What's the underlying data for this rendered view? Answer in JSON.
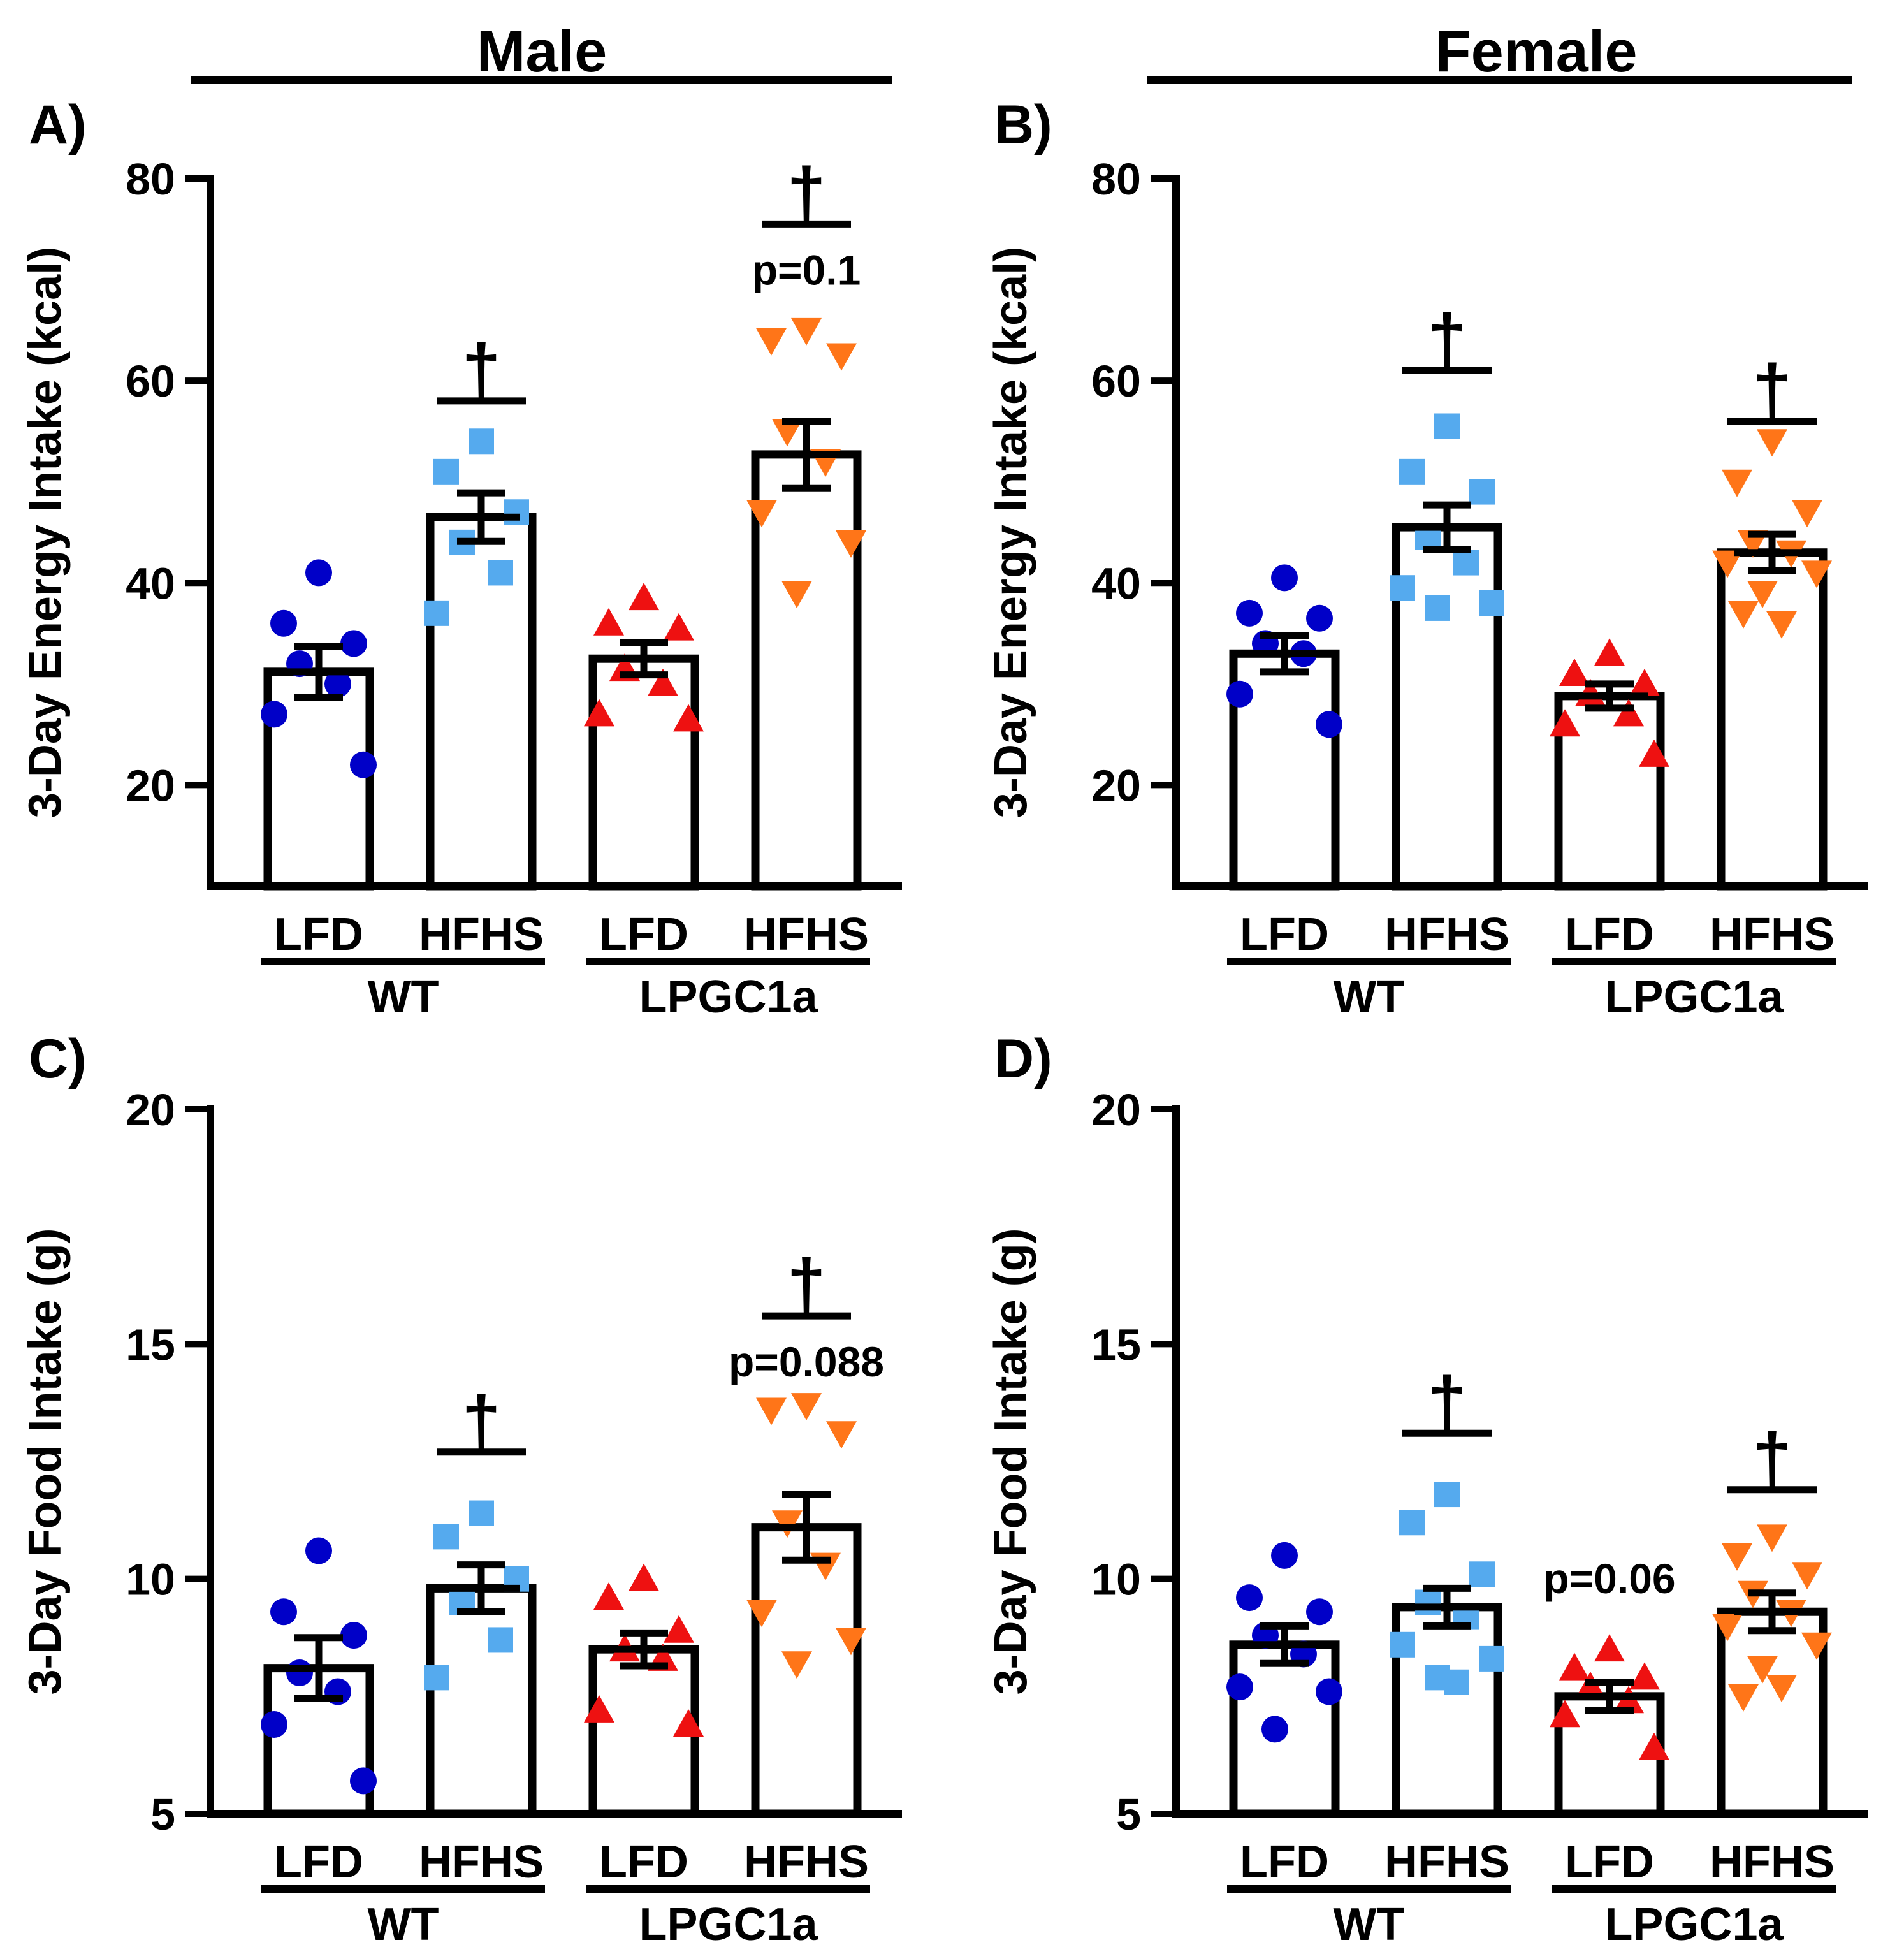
{
  "figure": {
    "header_left": "Male",
    "header_right": "Female"
  },
  "colors": {
    "wt_lfd": "#0000c8",
    "wt_hfhs": "#55aaee",
    "lpgc_lfd": "#ee1111",
    "lpgc_hfhs": "#ff7518",
    "axis": "#000000"
  },
  "chart_data": [
    {
      "type": "bar",
      "panel_label": "A)",
      "ylabel": "3-Day Energy Intake (kcal)",
      "ylim": [
        10,
        80
      ],
      "yticks": [
        20,
        40,
        60,
        80
      ],
      "categories": [
        "LFD",
        "HFHS",
        "LFD",
        "HFHS"
      ],
      "groups": [
        "WT",
        "LPGC1a"
      ],
      "markers": [
        "circle",
        "square",
        "triangle-up",
        "triangle-down"
      ],
      "means": [
        31.2,
        46.5,
        32.5,
        52.7
      ],
      "sem": [
        2.5,
        2.4,
        1.6,
        3.3
      ],
      "points": [
        [
          41,
          36,
          34,
          32,
          30,
          27,
          22
        ],
        [
          54,
          51,
          47,
          44,
          41,
          37
        ],
        [
          38.5,
          36,
          35.5,
          31.5,
          30,
          27,
          26.5
        ],
        [
          65,
          64,
          62.5,
          55,
          52,
          47,
          44,
          39
        ]
      ],
      "annotations": [
        {
          "bar_index": 1,
          "text": "†",
          "level": 58
        },
        {
          "bar_index": 3,
          "text": "†",
          "level": 75.5,
          "note": "p=0.1"
        }
      ]
    },
    {
      "type": "bar",
      "panel_label": "B)",
      "ylabel": "3-Day Energy Intake (kcal)",
      "ylim": [
        10,
        80
      ],
      "yticks": [
        20,
        40,
        60,
        80
      ],
      "categories": [
        "LFD",
        "HFHS",
        "LFD",
        "HFHS"
      ],
      "groups": [
        "WT",
        "LPGC1a"
      ],
      "markers": [
        "circle",
        "square",
        "triangle-up",
        "triangle-down"
      ],
      "means": [
        33.0,
        45.5,
        28.8,
        43.0
      ],
      "sem": [
        1.8,
        2.2,
        1.2,
        1.8
      ],
      "points": [
        [
          40.5,
          37,
          36.5,
          34,
          33,
          29,
          26
        ],
        [
          55.5,
          51,
          49,
          44.5,
          42,
          39.5,
          38,
          37.5
        ],
        [
          33,
          31,
          30,
          29,
          27,
          26,
          23
        ],
        [
          54,
          50,
          47,
          44,
          43,
          42,
          41,
          39,
          36,
          37
        ]
      ],
      "annotations": [
        {
          "bar_index": 1,
          "text": "†",
          "level": 61
        },
        {
          "bar_index": 3,
          "text": "†",
          "level": 56
        }
      ]
    },
    {
      "type": "bar",
      "panel_label": "C)",
      "ylabel": "3-Day Food Intake (g)",
      "ylim": [
        5,
        20
      ],
      "yticks": [
        5,
        10,
        15,
        20
      ],
      "categories": [
        "LFD",
        "HFHS",
        "LFD",
        "HFHS"
      ],
      "groups": [
        "WT",
        "LPGC1a"
      ],
      "markers": [
        "circle",
        "square",
        "triangle-up",
        "triangle-down"
      ],
      "means": [
        8.1,
        9.8,
        8.5,
        11.1
      ],
      "sem": [
        0.65,
        0.5,
        0.35,
        0.7
      ],
      "points": [
        [
          10.6,
          9.3,
          8.8,
          8.0,
          7.6,
          6.9,
          5.7
        ],
        [
          11.4,
          10.9,
          10.0,
          9.5,
          8.7,
          7.9
        ],
        [
          10.0,
          9.6,
          8.9,
          8.5,
          8.3,
          7.2,
          6.9
        ],
        [
          13.7,
          13.6,
          13.1,
          11.2,
          10.3,
          9.3,
          8.7,
          8.2
        ]
      ],
      "annotations": [
        {
          "bar_index": 1,
          "text": "†",
          "level": 12.7
        },
        {
          "bar_index": 3,
          "text": "†",
          "level": 15.6,
          "note": "p=0.088"
        }
      ]
    },
    {
      "type": "bar",
      "panel_label": "D)",
      "ylabel": "3-Day Food Intake (g)",
      "ylim": [
        5,
        20
      ],
      "yticks": [
        5,
        10,
        15,
        20
      ],
      "categories": [
        "LFD",
        "HFHS",
        "LFD",
        "HFHS"
      ],
      "groups": [
        "WT",
        "LPGC1a"
      ],
      "markers": [
        "circle",
        "square",
        "triangle-up",
        "triangle-down"
      ],
      "means": [
        8.6,
        9.4,
        7.5,
        9.3
      ],
      "sem": [
        0.4,
        0.4,
        0.3,
        0.4
      ],
      "points": [
        [
          10.5,
          9.6,
          9.3,
          8.8,
          8.4,
          7.7,
          7.6,
          6.8
        ],
        [
          11.8,
          11.2,
          10.1,
          9.5,
          9.2,
          8.6,
          8.3,
          7.9,
          7.8
        ],
        [
          8.5,
          8.1,
          7.9,
          7.7,
          7.4,
          7.1,
          6.4
        ],
        [
          10.9,
          10.5,
          10.1,
          9.7,
          9.3,
          9.0,
          8.6,
          8.1,
          7.7,
          7.5
        ]
      ],
      "annotations": [
        {
          "bar_index": 1,
          "text": "†",
          "level": 13.1
        },
        {
          "bar_index": 3,
          "text": "†",
          "level": 11.9
        },
        {
          "bar_index": 2,
          "text": "p=0.06",
          "level": 9.7,
          "kind": "note"
        }
      ]
    }
  ]
}
